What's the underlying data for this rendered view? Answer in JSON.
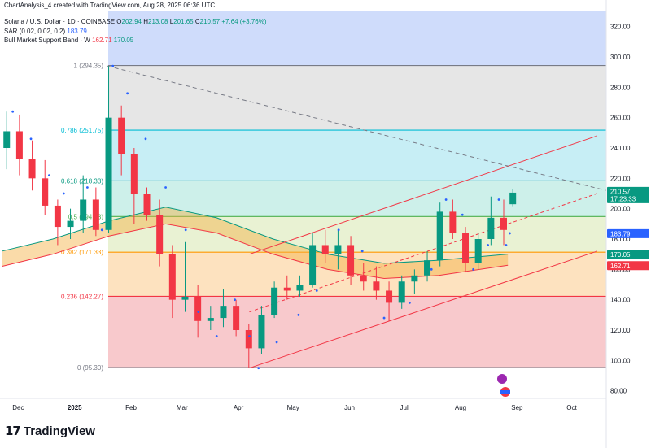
{
  "header": {
    "created": "ChartAnalysis_4 created with TradingView.com, Aug 28, 2025 06:36 UTC",
    "symbol": "Solana / U.S. Dollar · 1D · COINBASE",
    "o_label": "O",
    "o": "202.94",
    "h_label": "H",
    "h": "213.08",
    "l_label": "L",
    "l": "201.65",
    "c_label": "C",
    "c": "210.57",
    "change": "+7.64 (+3.76%)",
    "sar": "SAR (0.02, 0.02, 0.2)",
    "sar_value": "183.79",
    "band": "Bull Market Support Band · W",
    "band_a": "162.71",
    "band_b": "170.05"
  },
  "branding": {
    "logo_text": "TradingView",
    "logo_mark": "17"
  },
  "colors": {
    "up": "#089981",
    "down": "#f23645",
    "sar": "#2962ff",
    "fib_0": "#787b86",
    "fib_236": "#f23645",
    "fib_382": "#ff9800",
    "fib_5": "#4caf50",
    "fib_618": "#089981",
    "fib_786": "#00bcd4",
    "fib_1": "#787b86",
    "channel": "#f23645",
    "band_fill": "#f5b041"
  },
  "chart_data": {
    "type": "candlestick",
    "symbol": "SOLUSD",
    "timeframe": "1D",
    "y_axis": {
      "ticks": [
        "80.00",
        "100.00",
        "120.00",
        "140.00",
        "160.00",
        "180.00",
        "200.00",
        "220.00",
        "240.00",
        "260.00",
        "280.00",
        "300.00",
        "320.00"
      ],
      "range": [
        75,
        330
      ]
    },
    "x_axis": {
      "ticks": [
        {
          "label": "Dec",
          "date": "2024-12-01"
        },
        {
          "label": "2025",
          "date": "2025-01-01"
        },
        {
          "label": "Feb",
          "date": "2025-02-01"
        },
        {
          "label": "Mar",
          "date": "2025-03-01"
        },
        {
          "label": "Apr",
          "date": "2025-04-01"
        },
        {
          "label": "May",
          "date": "2025-05-01"
        },
        {
          "label": "Jun",
          "date": "2025-06-01"
        },
        {
          "label": "Jul",
          "date": "2025-07-01"
        },
        {
          "label": "Aug",
          "date": "2025-08-01"
        },
        {
          "label": "Sep",
          "date": "2025-09-01"
        },
        {
          "label": "Oct",
          "date": "2025-10-01"
        }
      ],
      "range": [
        "2024-11-21",
        "2025-10-20"
      ]
    },
    "fib_levels": [
      {
        "label": "0 (95.30)",
        "value": 95.3
      },
      {
        "label": "0.236 (142.27)",
        "value": 142.27
      },
      {
        "label": "0.382 (171.33)",
        "value": 171.33
      },
      {
        "label": "0.5 (194.83)",
        "value": 194.83
      },
      {
        "label": "0.618 (218.33)",
        "value": 218.33
      },
      {
        "label": "0.786 (251.75)",
        "value": 251.75
      },
      {
        "label": "1 (294.35)",
        "value": 294.35
      }
    ],
    "price_tags": [
      {
        "label": "210.57",
        "sub": "17:23:33",
        "value": 210.57,
        "color": "#089981"
      },
      {
        "label": "183.79",
        "value": 183.79,
        "color": "#2962ff"
      },
      {
        "label": "170.05",
        "value": 170.05,
        "color": "#089981"
      },
      {
        "label": "162.71",
        "value": 162.71,
        "color": "#f23645"
      }
    ],
    "trendlines": [
      {
        "name": "channel-upper",
        "from": [
          "2025-04-07",
          170
        ],
        "to": [
          "2025-10-15",
          248
        ]
      },
      {
        "name": "channel-lower",
        "from": [
          "2025-04-07",
          95
        ],
        "to": [
          "2025-10-15",
          172
        ]
      },
      {
        "name": "channel-mid",
        "from": [
          "2025-04-07",
          132
        ],
        "to": [
          "2025-10-15",
          210
        ]
      },
      {
        "name": "descending-resistance",
        "from": [
          "2025-01-19",
          294
        ],
        "to": [
          "2025-10-20",
          212
        ]
      }
    ],
    "candles_weekly": [
      {
        "t": "2024-11-22",
        "o": 240,
        "h": 264,
        "l": 226,
        "c": 251
      },
      {
        "t": "2024-11-29",
        "o": 251,
        "h": 262,
        "l": 222,
        "c": 233
      },
      {
        "t": "2024-12-06",
        "o": 233,
        "h": 245,
        "l": 212,
        "c": 220
      },
      {
        "t": "2024-12-13",
        "o": 220,
        "h": 232,
        "l": 196,
        "c": 202
      },
      {
        "t": "2024-12-20",
        "o": 202,
        "h": 206,
        "l": 176,
        "c": 188
      },
      {
        "t": "2024-12-27",
        "o": 188,
        "h": 200,
        "l": 180,
        "c": 192
      },
      {
        "t": "2025-01-03",
        "o": 192,
        "h": 222,
        "l": 184,
        "c": 206
      },
      {
        "t": "2025-01-10",
        "o": 206,
        "h": 214,
        "l": 182,
        "c": 186
      },
      {
        "t": "2025-01-17",
        "o": 186,
        "h": 294,
        "l": 184,
        "c": 260
      },
      {
        "t": "2025-01-24",
        "o": 260,
        "h": 268,
        "l": 222,
        "c": 236
      },
      {
        "t": "2025-01-31",
        "o": 236,
        "h": 240,
        "l": 190,
        "c": 210
      },
      {
        "t": "2025-02-07",
        "o": 210,
        "h": 214,
        "l": 192,
        "c": 196
      },
      {
        "t": "2025-02-14",
        "o": 196,
        "h": 206,
        "l": 162,
        "c": 170
      },
      {
        "t": "2025-02-21",
        "o": 170,
        "h": 176,
        "l": 128,
        "c": 140
      },
      {
        "t": "2025-02-28",
        "o": 140,
        "h": 178,
        "l": 132,
        "c": 142
      },
      {
        "t": "2025-03-07",
        "o": 142,
        "h": 150,
        "l": 115,
        "c": 126
      },
      {
        "t": "2025-03-14",
        "o": 126,
        "h": 136,
        "l": 120,
        "c": 128
      },
      {
        "t": "2025-03-21",
        "o": 128,
        "h": 147,
        "l": 122,
        "c": 136
      },
      {
        "t": "2025-03-28",
        "o": 136,
        "h": 140,
        "l": 116,
        "c": 120
      },
      {
        "t": "2025-04-04",
        "o": 120,
        "h": 124,
        "l": 95,
        "c": 108
      },
      {
        "t": "2025-04-11",
        "o": 108,
        "h": 136,
        "l": 104,
        "c": 130
      },
      {
        "t": "2025-04-18",
        "o": 130,
        "h": 152,
        "l": 128,
        "c": 148
      },
      {
        "t": "2025-04-25",
        "o": 148,
        "h": 156,
        "l": 140,
        "c": 146
      },
      {
        "t": "2025-05-02",
        "o": 146,
        "h": 156,
        "l": 142,
        "c": 150
      },
      {
        "t": "2025-05-09",
        "o": 150,
        "h": 184,
        "l": 148,
        "c": 176
      },
      {
        "t": "2025-05-16",
        "o": 176,
        "h": 186,
        "l": 164,
        "c": 170
      },
      {
        "t": "2025-05-23",
        "o": 170,
        "h": 186,
        "l": 160,
        "c": 176
      },
      {
        "t": "2025-05-30",
        "o": 176,
        "h": 182,
        "l": 150,
        "c": 156
      },
      {
        "t": "2025-06-06",
        "o": 156,
        "h": 164,
        "l": 146,
        "c": 152
      },
      {
        "t": "2025-06-13",
        "o": 152,
        "h": 162,
        "l": 140,
        "c": 146
      },
      {
        "t": "2025-06-20",
        "o": 146,
        "h": 152,
        "l": 126,
        "c": 138
      },
      {
        "t": "2025-06-27",
        "o": 138,
        "h": 156,
        "l": 134,
        "c": 152
      },
      {
        "t": "2025-07-04",
        "o": 152,
        "h": 160,
        "l": 144,
        "c": 156
      },
      {
        "t": "2025-07-11",
        "o": 156,
        "h": 172,
        "l": 152,
        "c": 166
      },
      {
        "t": "2025-07-18",
        "o": 166,
        "h": 204,
        "l": 162,
        "c": 198
      },
      {
        "t": "2025-07-25",
        "o": 198,
        "h": 206,
        "l": 180,
        "c": 184
      },
      {
        "t": "2025-08-01",
        "o": 184,
        "h": 188,
        "l": 158,
        "c": 164
      },
      {
        "t": "2025-08-08",
        "o": 164,
        "h": 184,
        "l": 160,
        "c": 180
      },
      {
        "t": "2025-08-15",
        "o": 180,
        "h": 208,
        "l": 176,
        "c": 194
      },
      {
        "t": "2025-08-22",
        "o": 194,
        "h": 206,
        "l": 176,
        "c": 186
      },
      {
        "t": "2025-08-27",
        "o": 202.94,
        "h": 213.08,
        "l": 201.65,
        "c": 210.57
      }
    ],
    "sar_points": [
      {
        "t": "2024-11-28",
        "v": 264
      },
      {
        "t": "2024-12-08",
        "v": 246
      },
      {
        "t": "2024-12-18",
        "v": 222
      },
      {
        "t": "2024-12-26",
        "v": 210
      },
      {
        "t": "2025-01-08",
        "v": 214
      },
      {
        "t": "2025-01-16",
        "v": 186
      },
      {
        "t": "2025-01-22",
        "v": 294
      },
      {
        "t": "2025-01-30",
        "v": 276
      },
      {
        "t": "2025-02-09",
        "v": 246
      },
      {
        "t": "2025-02-20",
        "v": 214
      },
      {
        "t": "2025-03-03",
        "v": 186
      },
      {
        "t": "2025-03-10",
        "v": 132
      },
      {
        "t": "2025-03-20",
        "v": 116
      },
      {
        "t": "2025-03-30",
        "v": 140
      },
      {
        "t": "2025-04-07",
        "v": 116
      },
      {
        "t": "2025-04-12",
        "v": 95
      },
      {
        "t": "2025-04-22",
        "v": 112
      },
      {
        "t": "2025-05-04",
        "v": 130
      },
      {
        "t": "2025-05-14",
        "v": 146
      },
      {
        "t": "2025-05-26",
        "v": 186
      },
      {
        "t": "2025-06-08",
        "v": 172
      },
      {
        "t": "2025-06-20",
        "v": 128
      },
      {
        "t": "2025-07-04",
        "v": 138
      },
      {
        "t": "2025-07-16",
        "v": 160
      },
      {
        "t": "2025-07-24",
        "v": 206
      },
      {
        "t": "2025-08-02",
        "v": 196
      },
      {
        "t": "2025-08-08",
        "v": 160
      },
      {
        "t": "2025-08-16",
        "v": 176
      },
      {
        "t": "2025-08-22",
        "v": 206
      },
      {
        "t": "2025-08-26",
        "v": 176
      },
      {
        "t": "2025-08-28",
        "v": 183.79
      }
    ],
    "support_band": {
      "upper": [
        {
          "t": "2024-11-22",
          "v": 172
        },
        {
          "t": "2024-12-20",
          "v": 180
        },
        {
          "t": "2025-01-20",
          "v": 192
        },
        {
          "t": "2025-02-20",
          "v": 201
        },
        {
          "t": "2025-03-20",
          "v": 194
        },
        {
          "t": "2025-04-20",
          "v": 180
        },
        {
          "t": "2025-05-20",
          "v": 170
        },
        {
          "t": "2025-06-20",
          "v": 164
        },
        {
          "t": "2025-07-20",
          "v": 166
        },
        {
          "t": "2025-08-27",
          "v": 170.05
        }
      ],
      "lower": [
        {
          "t": "2024-11-22",
          "v": 162
        },
        {
          "t": "2024-12-20",
          "v": 170
        },
        {
          "t": "2025-01-20",
          "v": 182
        },
        {
          "t": "2025-02-20",
          "v": 190
        },
        {
          "t": "2025-03-20",
          "v": 184
        },
        {
          "t": "2025-04-20",
          "v": 170
        },
        {
          "t": "2025-05-20",
          "v": 160
        },
        {
          "t": "2025-06-20",
          "v": 154
        },
        {
          "t": "2025-07-20",
          "v": 156
        },
        {
          "t": "2025-08-27",
          "v": 162.71
        }
      ]
    }
  }
}
